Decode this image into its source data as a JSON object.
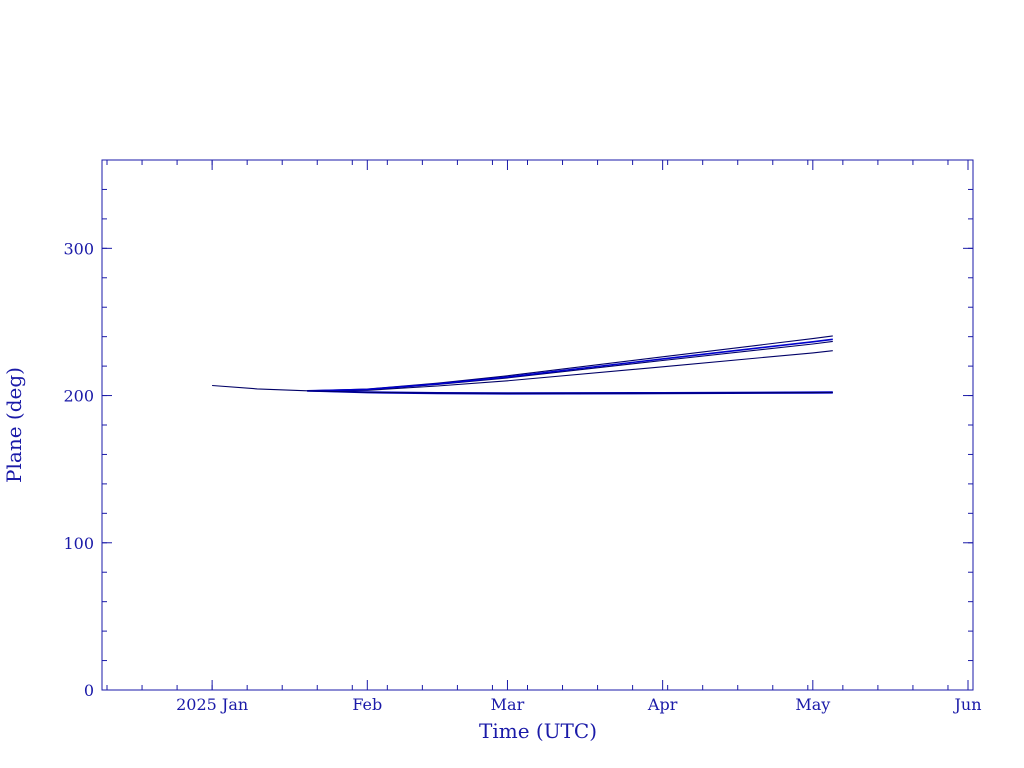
{
  "chart_data": {
    "type": "line",
    "title": "",
    "xlabel": "Time (UTC)",
    "ylabel": "Plane (deg)",
    "xlim": [
      "2024-12-10",
      "2025-06-02"
    ],
    "ylim": [
      0,
      360
    ],
    "x_ticks": [
      {
        "date": "2025-01-01",
        "label": "2025 Jan"
      },
      {
        "date": "2025-02-01",
        "label": "Feb"
      },
      {
        "date": "2025-03-01",
        "label": "Mar"
      },
      {
        "date": "2025-04-01",
        "label": "Apr"
      },
      {
        "date": "2025-05-01",
        "label": "May"
      },
      {
        "date": "2025-06-01",
        "label": "Jun"
      }
    ],
    "y_ticks": [
      0,
      100,
      200,
      300
    ],
    "grid": false,
    "colors": {
      "axis": "#1a1aa8",
      "series_a": "#000066",
      "series_b": "#0000cc"
    },
    "series": [
      {
        "color": "#000066",
        "points": [
          [
            "2025-01-01",
            206.8
          ],
          [
            "2025-01-10",
            204.5
          ],
          [
            "2025-01-20",
            203.2
          ],
          [
            "2025-02-01",
            203.6
          ],
          [
            "2025-02-15",
            206.5
          ],
          [
            "2025-03-01",
            210.0
          ],
          [
            "2025-04-01",
            219.5
          ],
          [
            "2025-05-01",
            229.0
          ],
          [
            "2025-05-05",
            230.5
          ]
        ]
      },
      {
        "color": "#000066",
        "points": [
          [
            "2025-01-20",
            203.2
          ],
          [
            "2025-02-01",
            204.4
          ],
          [
            "2025-02-15",
            208.4
          ],
          [
            "2025-03-01",
            213.4
          ],
          [
            "2025-04-01",
            226.3
          ],
          [
            "2025-05-01",
            238.7
          ],
          [
            "2025-05-05",
            240.5
          ]
        ]
      },
      {
        "color": "#000066",
        "points": [
          [
            "2025-01-20",
            203.2
          ],
          [
            "2025-02-01",
            204.0
          ],
          [
            "2025-02-15",
            207.5
          ],
          [
            "2025-03-01",
            212.0
          ],
          [
            "2025-04-01",
            223.8
          ],
          [
            "2025-05-01",
            235.0
          ],
          [
            "2025-05-05",
            236.8
          ]
        ]
      },
      {
        "color": "#0000cc",
        "points": [
          [
            "2025-01-20",
            203.2
          ],
          [
            "2025-02-01",
            204.2
          ],
          [
            "2025-02-15",
            207.9
          ],
          [
            "2025-03-01",
            212.6
          ],
          [
            "2025-04-01",
            224.9
          ],
          [
            "2025-05-01",
            236.5
          ],
          [
            "2025-05-05",
            238.2
          ]
        ]
      },
      {
        "color": "#0000cc",
        "points": [
          [
            "2025-01-20",
            203.2
          ],
          [
            "2025-02-01",
            202.0
          ],
          [
            "2025-02-15",
            201.4
          ],
          [
            "2025-03-01",
            201.2
          ],
          [
            "2025-04-01",
            201.4
          ],
          [
            "2025-05-01",
            201.8
          ],
          [
            "2025-05-05",
            201.9
          ]
        ]
      },
      {
        "color": "#0000cc",
        "points": [
          [
            "2025-01-20",
            203.2
          ],
          [
            "2025-02-01",
            202.4
          ],
          [
            "2025-02-15",
            201.9
          ],
          [
            "2025-03-01",
            201.7
          ],
          [
            "2025-04-01",
            201.9
          ],
          [
            "2025-05-01",
            202.3
          ],
          [
            "2025-05-05",
            202.4
          ]
        ]
      },
      {
        "color": "#000066",
        "points": [
          [
            "2025-01-20",
            203.2
          ],
          [
            "2025-02-01",
            202.2
          ],
          [
            "2025-02-15",
            201.7
          ],
          [
            "2025-03-01",
            201.5
          ],
          [
            "2025-04-01",
            201.6
          ],
          [
            "2025-05-01",
            202.0
          ],
          [
            "2025-05-05",
            202.1
          ]
        ]
      }
    ]
  }
}
